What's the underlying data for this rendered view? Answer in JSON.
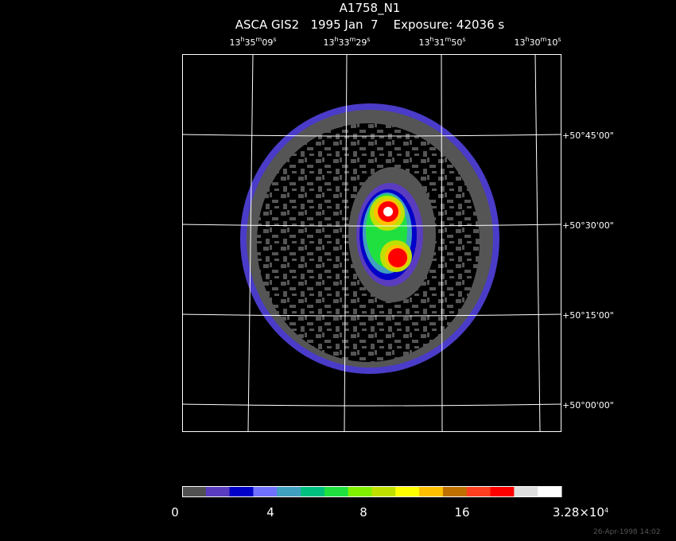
{
  "header": {
    "title": "A1758_N1",
    "subtitle": "ASCA GIS2   1995 Jan  7    Exposure: 42036 s"
  },
  "ra_labels": [
    [
      "13",
      "h",
      "35",
      "m",
      "09",
      "s"
    ],
    [
      "13",
      "h",
      "33",
      "m",
      "29",
      "s"
    ],
    [
      "13",
      "h",
      "31",
      "m",
      "50",
      "s"
    ],
    [
      "13",
      "h",
      "30",
      "m",
      "10",
      "s"
    ]
  ],
  "dec_labels": [
    "+50°45'00\"",
    "+50°30'00\"",
    "+50°15'00\"",
    "+50°00'00\""
  ],
  "colorbar": {
    "colors": [
      "#505050",
      "#5a3cc0",
      "#0000c8",
      "#7070ff",
      "#40a0c0",
      "#00c080",
      "#20e040",
      "#80f000",
      "#c0e000",
      "#ffff00",
      "#ffc000",
      "#c07000",
      "#ff4020",
      "#ff0000",
      "#e0e0e0",
      "#ffffff"
    ],
    "labels": [
      [
        "0"
      ],
      [
        "4"
      ],
      [
        "8"
      ],
      [
        "16"
      ],
      [
        "3.28×10",
        "4"
      ]
    ]
  },
  "timestamp": "26-Apr-1998 14:02"
}
